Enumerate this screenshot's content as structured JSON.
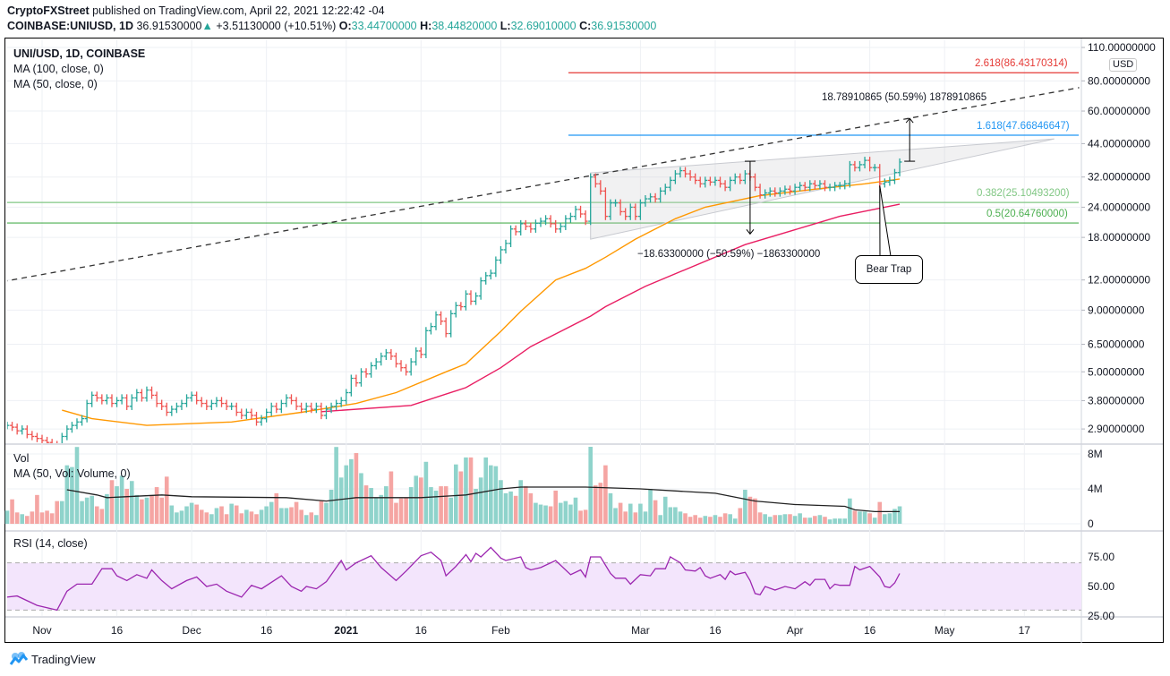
{
  "header": {
    "publisher": "CryptoFXStreet",
    "published_text": " published on TradingView.com, April 22, 2021 12:22:42 -04",
    "symbol": "COINBASE:UNIUSD, 1D",
    "last": "36.91530000",
    "up_arrow": "▲",
    "change": "+3.51130000 (+10.51%)",
    "o_label": "O:",
    "o_value": "33.44700000",
    "h_label": "H:",
    "h_value": "38.44820000",
    "l_label": "L:",
    "l_value": "32.69010000",
    "c_label": "C:",
    "c_value": "36.91530000"
  },
  "legend": {
    "title": "UNI/USD, 1D, COINBASE",
    "ma100": "MA (100, close, 0)",
    "ma50": "MA (50, close, 0)",
    "vol": "Vol",
    "vol_ma": "MA (50, Vol: Volume, 0)",
    "rsi": "RSI (14, close)"
  },
  "currency_badge": "USD",
  "annotations": {
    "measure_down": "−18.63300000 (−50.59%) −1863300000",
    "measure_up": "18.78910865 (50.59%) 1878910865",
    "bear_trap": "Bear Trap",
    "fib_2618": "2.618(86.43170314)",
    "fib_1618": "1.618(47.66846647)",
    "fib_0382": "0.382(25.10493200)",
    "fib_05": "0.5(20.64760000)"
  },
  "footer": {
    "brand": "TradingView"
  },
  "colors": {
    "up": "#26a69a",
    "down": "#ef5350",
    "ma50": "#ff9800",
    "ma100": "#e91e63",
    "rsi": "#9c27b0",
    "fib_2618": "#e53935",
    "fib_1618": "#2196f3",
    "fib_0382": "#81c784",
    "fib_05": "#4caf50"
  },
  "chart_data": [
    {
      "type": "line",
      "scale": "log",
      "start_date": "2020-10-25",
      "close": [
        3.0,
        2.95,
        2.85,
        2.9,
        2.75,
        2.7,
        2.65,
        2.6,
        2.55,
        2.5,
        2.45,
        2.7,
        2.9,
        3.0,
        3.1,
        3.2,
        3.7,
        4.0,
        3.9,
        3.8,
        3.9,
        3.7,
        3.8,
        3.9,
        3.6,
        3.9,
        4.1,
        3.9,
        4.2,
        4.0,
        3.7,
        3.6,
        3.4,
        3.5,
        3.6,
        3.7,
        3.9,
        4.0,
        3.8,
        3.7,
        3.6,
        3.7,
        3.8,
        3.7,
        3.6,
        3.6,
        3.4,
        3.3,
        3.4,
        3.3,
        3.1,
        3.2,
        3.4,
        3.6,
        3.5,
        3.7,
        3.9,
        3.8,
        3.6,
        3.5,
        3.6,
        3.5,
        3.6,
        3.3,
        3.5,
        3.6,
        3.7,
        3.8,
        4.1,
        4.7,
        4.5,
        5.0,
        4.9,
        5.3,
        5.5,
        5.8,
        6.0,
        5.8,
        5.4,
        5.2,
        5.0,
        5.5,
        6.1,
        5.9,
        7.4,
        7.7,
        8.6,
        8.1,
        7.2,
        8.7,
        9.4,
        9.3,
        10.5,
        9.8,
        10.3,
        11.9,
        12.5,
        12.8,
        14.5,
        16.0,
        17.0,
        19.5,
        19.0,
        20.5,
        20.0,
        19.5,
        20.6,
        21.0,
        21.5,
        20.5,
        19.5,
        20.0,
        21.5,
        22.0,
        23.5,
        22.5,
        21.0,
        32,
        30,
        28,
        22,
        25,
        25,
        23,
        22,
        24,
        22,
        25,
        26,
        26.5,
        26,
        28,
        29,
        31,
        33,
        34,
        33,
        32,
        31,
        30,
        31,
        30.5,
        31,
        30,
        29,
        31,
        32,
        31,
        33,
        32,
        29,
        27,
        27.5,
        28,
        27.5,
        28,
        28.5,
        28,
        29,
        29.5,
        29,
        30,
        29.5,
        30,
        29,
        29,
        29.5,
        29.5,
        30,
        36,
        35,
        36,
        37.5,
        35,
        35,
        30,
        30.5,
        31,
        33.4,
        36.9153
      ],
      "ma50": [
        [
          "2020-11-05",
          3.47
        ],
        [
          "2020-11-11",
          3.2
        ],
        [
          "2020-11-22",
          3.0
        ],
        [
          "2020-12-09",
          3.1
        ],
        [
          "2020-12-23",
          3.4
        ],
        [
          "2021-01-03",
          3.7
        ],
        [
          "2021-01-11",
          4.1
        ],
        [
          "2021-01-21",
          5.0
        ],
        [
          "2021-01-25",
          5.4
        ],
        [
          "2021-02-01",
          7.35
        ],
        [
          "2021-02-05",
          8.9
        ],
        [
          "2021-02-12",
          12.0
        ],
        [
          "2021-02-18",
          13.4
        ],
        [
          "2021-02-22",
          14.9
        ],
        [
          "2021-02-28",
          17.7
        ],
        [
          "2021-03-08",
          21.5
        ],
        [
          "2021-03-14",
          24.0
        ],
        [
          "2021-03-25",
          26.8
        ],
        [
          "2021-04-05",
          28.5
        ],
        [
          "2021-04-15",
          30.0
        ],
        [
          "2021-04-22",
          31.4
        ]
      ],
      "ma100": [
        [
          "2020-12-27",
          3.42
        ],
        [
          "2021-01-14",
          3.63
        ],
        [
          "2021-01-25",
          4.3
        ],
        [
          "2021-02-01",
          5.2
        ],
        [
          "2021-02-07",
          6.36
        ],
        [
          "2021-02-13",
          7.35
        ],
        [
          "2021-02-19",
          8.5
        ],
        [
          "2021-02-22",
          9.3
        ],
        [
          "2021-03-02",
          11.3
        ],
        [
          "2021-03-22",
          16.8
        ],
        [
          "2021-04-10",
          22.0
        ],
        [
          "2021-04-22",
          24.7
        ]
      ],
      "yticks": [
        "110.00000000",
        "80.00000000",
        "60.00000000",
        "44.00000000",
        "32.00000000",
        "24.00000000",
        "18.00000000",
        "12.00000000",
        "9.00000000",
        "6.50000000",
        "5.00000000",
        "3.80000000",
        "2.90000000"
      ],
      "fib_levels": [
        {
          "ratio": 0.382,
          "price": 25.104932
        },
        {
          "ratio": 0.5,
          "price": 20.6476
        },
        {
          "ratio": 1.618,
          "price": 47.66846647
        },
        {
          "ratio": 2.618,
          "price": 86.43170314
        }
      ],
      "trendline": [
        [
          "2020-10-24",
          11.8
        ],
        [
          "2021-05-28",
          75.0
        ]
      ],
      "triangle": [
        [
          "2021-02-19",
          33.3
        ],
        [
          "2021-02-19",
          17.7
        ],
        [
          "2021-05-23",
          46.0
        ]
      ],
      "measure_down": [
        [
          "2021-03-23",
          37.2
        ],
        [
          "2021-03-23",
          18.6
        ]
      ],
      "measure_up": [
        [
          "2021-04-24",
          37.2
        ],
        [
          "2021-04-24",
          56.0
        ]
      ],
      "bear_trap_point": [
        "2021-04-18",
        29.5
      ]
    },
    {
      "type": "bar",
      "start_date": "2020-10-25",
      "volume_millions": [
        1.5,
        2.8,
        1.3,
        1.1,
        0.9,
        1.4,
        3.3,
        1.3,
        1.5,
        1.2,
        2.6,
        2.6,
        6.7,
        6.5,
        8.8,
        2.6,
        3.0,
        3.2,
        2.0,
        1.7,
        3.4,
        5.0,
        4.3,
        5.5,
        4.0,
        4.9,
        3.3,
        2.8,
        3.0,
        3.3,
        4.2,
        3.0,
        5.4,
        2.1,
        1.3,
        1.5,
        2.0,
        2.4,
        2.2,
        1.6,
        1.3,
        1.1,
        1.8,
        2.0,
        1.1,
        2.3,
        2.1,
        1.2,
        1.6,
        1.4,
        1.1,
        1.6,
        2.0,
        2.5,
        3.5,
        1.8,
        1.8,
        1.9,
        2.5,
        1.6,
        1.0,
        1.3,
        1.0,
        2.6,
        2.4,
        3.9,
        8.8,
        5.3,
        6.7,
        7.4,
        8.1,
        5.8,
        4.4,
        4.1,
        3.0,
        3.3,
        4.3,
        6.0,
        2.4,
        2.9,
        3.0,
        4.2,
        5.5,
        5.3,
        7.1,
        4.2,
        3.8,
        4.3,
        4.3,
        3.0,
        6.8,
        6.0,
        7.6,
        7.6,
        4.0,
        5.3,
        7.6,
        6.7,
        6.6,
        5.0,
        3.5,
        3.7,
        3.2,
        5.0,
        4.3,
        3.5,
        2.4,
        2.2,
        2.1,
        2.0,
        3.8,
        2.4,
        2.6,
        2.2,
        3.0,
        1.5,
        1.6,
        9.0,
        4.4,
        4.7,
        6.7,
        3.5,
        1.8,
        2.4,
        1.4,
        2.3,
        1.3,
        2.3,
        1.4,
        4.0,
        2.7,
        1.0,
        3.1,
        1.9,
        1.9,
        1.4,
        1.2,
        0.8,
        1.0,
        0.7,
        0.9,
        0.8,
        1.0,
        0.8,
        1.2,
        1.1,
        0.6,
        1.8,
        3.9,
        3.1,
        2.9,
        1.3,
        1.1,
        0.8,
        1.0,
        1.0,
        1.1,
        1.1,
        0.9,
        1.2,
        0.7,
        0.7,
        0.9,
        1.0,
        0.8,
        0.5,
        0.6,
        0.6,
        0.6,
        2.9,
        1.5,
        1.4,
        1.4,
        1.2,
        0.7,
        2.5,
        1.1,
        1.2,
        1.7,
        2.0
      ],
      "vol_ma": [
        [
          "2020-11-06",
          3.9
        ],
        [
          "2020-11-12",
          3.3
        ],
        [
          "2020-11-14",
          3.0
        ],
        [
          "2020-11-25",
          3.3
        ],
        [
          "2020-12-01",
          3.1
        ],
        [
          "2020-12-20",
          3.0
        ],
        [
          "2020-12-28",
          2.6
        ],
        [
          "2021-01-03",
          3.0
        ],
        [
          "2021-01-16",
          3.0
        ],
        [
          "2021-01-25",
          3.3
        ],
        [
          "2021-02-01",
          4.0
        ],
        [
          "2021-02-05",
          4.2
        ],
        [
          "2021-02-18",
          4.2
        ],
        [
          "2021-03-01",
          4.0
        ],
        [
          "2021-03-16",
          3.5
        ],
        [
          "2021-03-24",
          2.6
        ],
        [
          "2021-04-01",
          2.2
        ],
        [
          "2021-04-11",
          2.0
        ],
        [
          "2021-04-13",
          1.6
        ],
        [
          "2021-04-17",
          1.4
        ],
        [
          "2021-04-22",
          1.4
        ]
      ],
      "yticks": [
        {
          "v": 8,
          "label": "8M"
        },
        {
          "v": 4,
          "label": "4M"
        },
        {
          "v": 0,
          "label": "0"
        }
      ]
    },
    {
      "type": "line",
      "rsi": [
        [
          "2020-10-25",
          41
        ],
        [
          "2020-10-27",
          42
        ],
        [
          "2020-10-31",
          34
        ],
        [
          "2020-11-04",
          30
        ],
        [
          "2020-11-06",
          46
        ],
        [
          "2020-11-08",
          52
        ],
        [
          "2020-11-11",
          52
        ],
        [
          "2020-11-13",
          65
        ],
        [
          "2020-11-15",
          65
        ],
        [
          "2020-11-16",
          59
        ],
        [
          "2020-11-18",
          55
        ],
        [
          "2020-11-20",
          60
        ],
        [
          "2020-11-22",
          57
        ],
        [
          "2020-11-23",
          64
        ],
        [
          "2020-11-25",
          55
        ],
        [
          "2020-11-27",
          48
        ],
        [
          "2020-11-30",
          55
        ],
        [
          "2020-12-02",
          58
        ],
        [
          "2020-12-04",
          50
        ],
        [
          "2020-12-06",
          52
        ],
        [
          "2020-12-08",
          46
        ],
        [
          "2020-12-11",
          41
        ],
        [
          "2020-12-13",
          51
        ],
        [
          "2020-12-15",
          48
        ],
        [
          "2020-12-19",
          59
        ],
        [
          "2020-12-21",
          50
        ],
        [
          "2020-12-23",
          46
        ],
        [
          "2020-12-24",
          50
        ],
        [
          "2020-12-26",
          48
        ],
        [
          "2020-12-28",
          54
        ],
        [
          "2020-12-31",
          72
        ],
        [
          "2021-01-01",
          64
        ],
        [
          "2021-01-03",
          70
        ],
        [
          "2021-01-06",
          76
        ],
        [
          "2021-01-08",
          66
        ],
        [
          "2021-01-11",
          55
        ],
        [
          "2021-01-13",
          63
        ],
        [
          "2021-01-16",
          76
        ],
        [
          "2021-01-18",
          79
        ],
        [
          "2021-01-20",
          72
        ],
        [
          "2021-01-21",
          59
        ],
        [
          "2021-01-23",
          67
        ],
        [
          "2021-01-25",
          77
        ],
        [
          "2021-01-26",
          71
        ],
        [
          "2021-01-27",
          78
        ],
        [
          "2021-01-28",
          75
        ],
        [
          "2021-01-30",
          83
        ],
        [
          "2021-02-01",
          74
        ],
        [
          "2021-02-02",
          72
        ],
        [
          "2021-02-05",
          75
        ],
        [
          "2021-02-06",
          66
        ],
        [
          "2021-02-07",
          64
        ],
        [
          "2021-02-09",
          66
        ],
        [
          "2021-02-12",
          72
        ],
        [
          "2021-02-15",
          60
        ],
        [
          "2021-02-17",
          64
        ],
        [
          "2021-02-18",
          58
        ],
        [
          "2021-02-19",
          75
        ],
        [
          "2021-02-21",
          75
        ],
        [
          "2021-02-23",
          61
        ],
        [
          "2021-02-24",
          57
        ],
        [
          "2021-02-26",
          57
        ],
        [
          "2021-02-27",
          52
        ],
        [
          "2021-03-01",
          60
        ],
        [
          "2021-03-03",
          59
        ],
        [
          "2021-03-04",
          65
        ],
        [
          "2021-03-06",
          65
        ],
        [
          "2021-03-07",
          75
        ],
        [
          "2021-03-09",
          70
        ],
        [
          "2021-03-10",
          64
        ],
        [
          "2021-03-12",
          63
        ],
        [
          "2021-03-13",
          66
        ],
        [
          "2021-03-14",
          59
        ],
        [
          "2021-03-15",
          57
        ],
        [
          "2021-03-17",
          60
        ],
        [
          "2021-03-18",
          56
        ],
        [
          "2021-03-19",
          63
        ],
        [
          "2021-03-20",
          60
        ],
        [
          "2021-03-22",
          62
        ],
        [
          "2021-03-23",
          55
        ],
        [
          "2021-03-24",
          44
        ],
        [
          "2021-03-25",
          43
        ],
        [
          "2021-03-26",
          50
        ],
        [
          "2021-03-28",
          47
        ],
        [
          "2021-03-30",
          50
        ],
        [
          "2021-04-01",
          48
        ],
        [
          "2021-04-03",
          54
        ],
        [
          "2021-04-04",
          51
        ],
        [
          "2021-04-05",
          56
        ],
        [
          "2021-04-07",
          56
        ],
        [
          "2021-04-08",
          48
        ],
        [
          "2021-04-09",
          52
        ],
        [
          "2021-04-10",
          51
        ],
        [
          "2021-04-12",
          51
        ],
        [
          "2021-04-13",
          67
        ],
        [
          "2021-04-14",
          64
        ],
        [
          "2021-04-16",
          67
        ],
        [
          "2021-04-18",
          58
        ],
        [
          "2021-04-19",
          50
        ],
        [
          "2021-04-20",
          49
        ],
        [
          "2021-04-21",
          53
        ],
        [
          "2021-04-22",
          61
        ]
      ],
      "bands": [
        70,
        30
      ],
      "yticks": [
        {
          "v": 75,
          "label": "75.00"
        },
        {
          "v": 50,
          "label": "50.00"
        },
        {
          "v": 25,
          "label": "25.00"
        }
      ]
    }
  ],
  "x_axis": [
    {
      "label": "Nov",
      "date": "2020-11-01",
      "bold": false
    },
    {
      "label": "16",
      "date": "2020-11-16",
      "bold": false
    },
    {
      "label": "Dec",
      "date": "2020-12-01",
      "bold": false
    },
    {
      "label": "16",
      "date": "2020-12-16",
      "bold": false
    },
    {
      "label": "2021",
      "date": "2021-01-01",
      "bold": true
    },
    {
      "label": "16",
      "date": "2021-01-16",
      "bold": false
    },
    {
      "label": "Feb",
      "date": "2021-02-01",
      "bold": false
    },
    {
      "label": "Mar",
      "date": "2021-03-01",
      "bold": false
    },
    {
      "label": "16",
      "date": "2021-03-16",
      "bold": false
    },
    {
      "label": "Apr",
      "date": "2021-04-01",
      "bold": false
    },
    {
      "label": "16",
      "date": "2021-04-16",
      "bold": false
    },
    {
      "label": "May",
      "date": "2021-05-01",
      "bold": false
    },
    {
      "label": "17",
      "date": "2021-05-17",
      "bold": false
    }
  ]
}
